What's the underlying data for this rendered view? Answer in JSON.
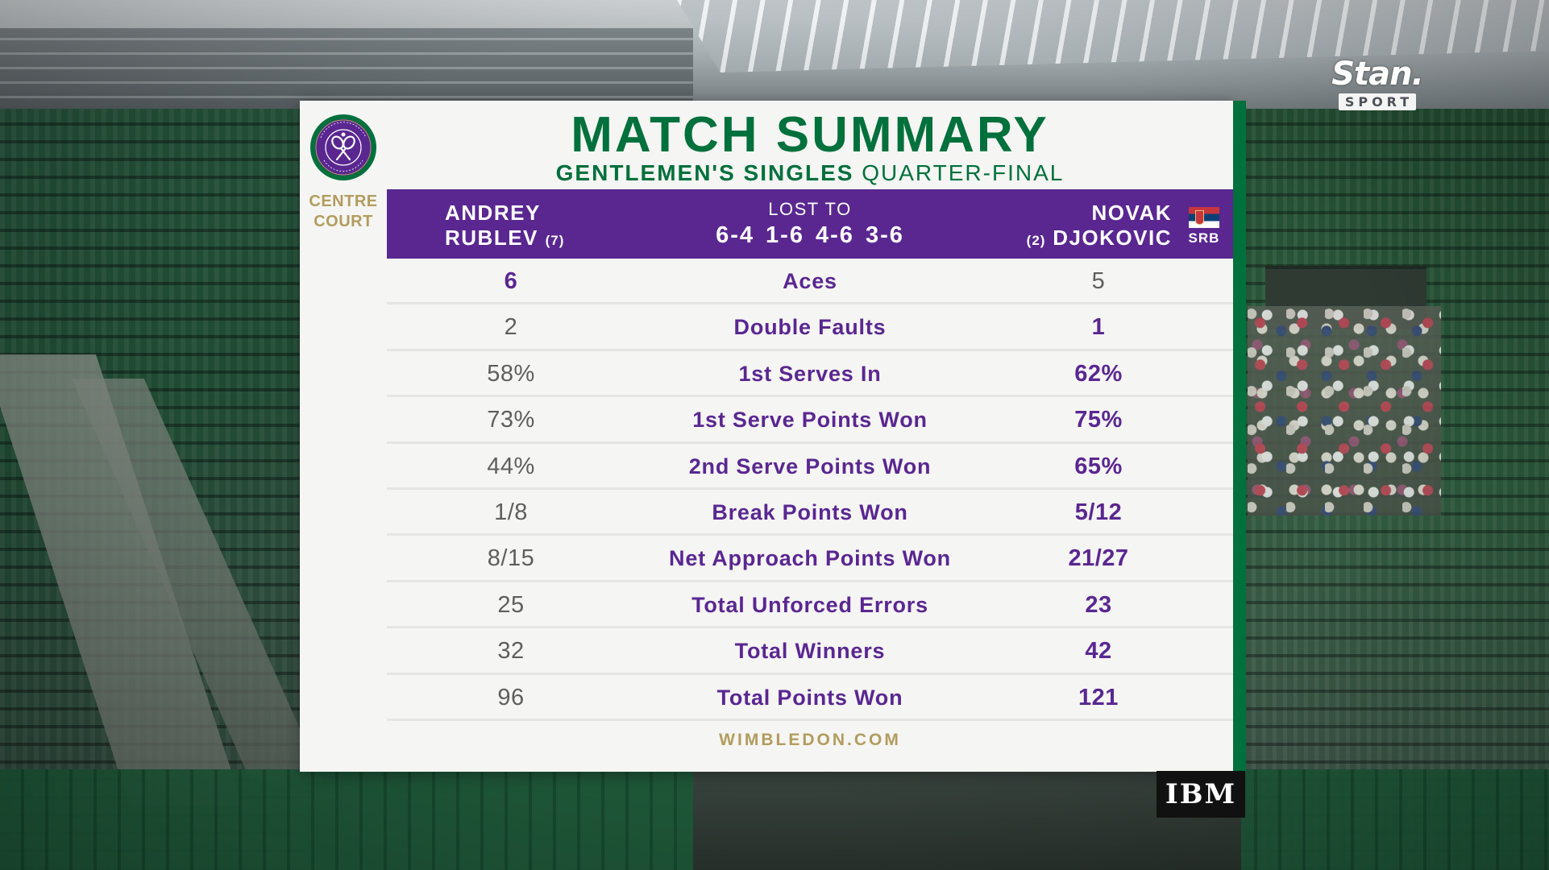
{
  "broadcaster": {
    "brand": "Stan.",
    "sub": "SPORT"
  },
  "sponsor": {
    "label": "IBM"
  },
  "panel": {
    "logo": {
      "ring_text": "THE CHAMPIONSHIPS · WIMBLEDON",
      "colors": {
        "purple": "#5a2791",
        "green": "#00703c",
        "gold": "#b29c5e"
      }
    },
    "venue": {
      "line1": "CENTRE",
      "line2": "COURT"
    },
    "title": "MATCH SUMMARY",
    "event": "GENTLEMEN'S SINGLES",
    "round": "QUARTER-FINAL",
    "header": {
      "player1": {
        "first": "ANDREY",
        "last": "RUBLEV",
        "seed": "(7)"
      },
      "result_label": "LOST TO",
      "score": "6-4 1-6 4-6 3-6",
      "player2": {
        "first": "NOVAK",
        "last": "DJOKOVIC",
        "seed": "(2)",
        "country": "SRB",
        "flag": "serbia-flag"
      }
    },
    "stats": [
      {
        "label": "Aces",
        "p1": "6",
        "p2": "5",
        "leader": "p1"
      },
      {
        "label": "Double Faults",
        "p1": "2",
        "p2": "1",
        "leader": "p2"
      },
      {
        "label": "1st Serves In",
        "p1": "58%",
        "p2": "62%",
        "leader": "p2"
      },
      {
        "label": "1st Serve Points Won",
        "p1": "73%",
        "p2": "75%",
        "leader": "p2"
      },
      {
        "label": "2nd Serve Points Won",
        "p1": "44%",
        "p2": "65%",
        "leader": "p2"
      },
      {
        "label": "Break Points Won",
        "p1": "1/8",
        "p2": "5/12",
        "leader": "p2"
      },
      {
        "label": "Net Approach Points Won",
        "p1": "8/15",
        "p2": "21/27",
        "leader": "p2"
      },
      {
        "label": "Total Unforced Errors",
        "p1": "25",
        "p2": "23",
        "leader": "p2"
      },
      {
        "label": "Total Winners",
        "p1": "32",
        "p2": "42",
        "leader": "p2"
      },
      {
        "label": "Total Points Won",
        "p1": "96",
        "p2": "121",
        "leader": "p2"
      }
    ],
    "footer": "WIMBLEDON.COM"
  }
}
